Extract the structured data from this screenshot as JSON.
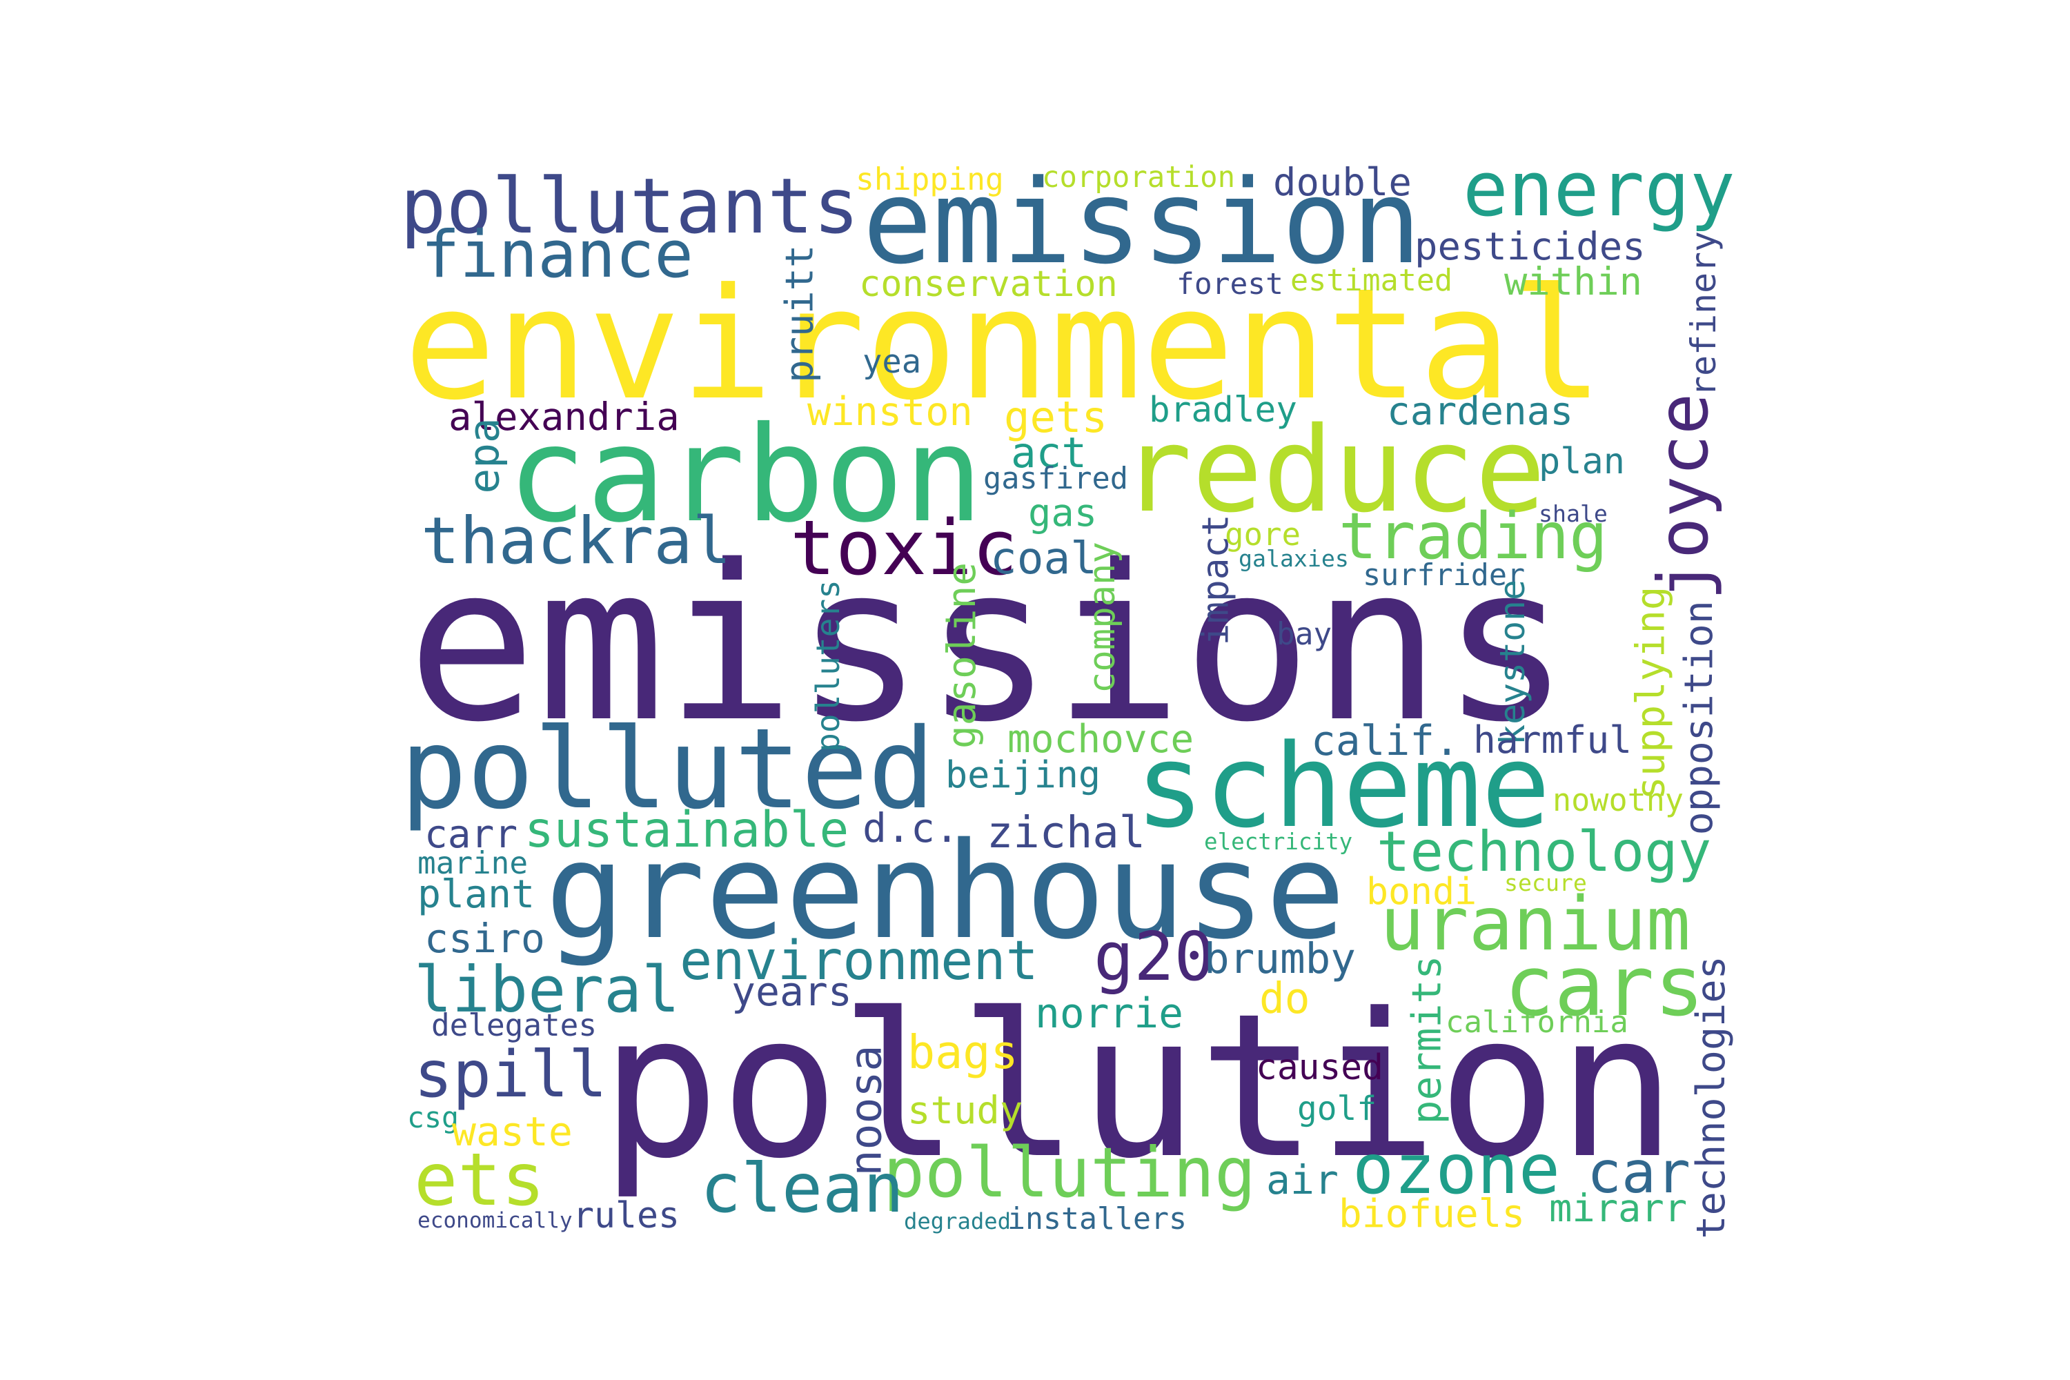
{
  "palette": {
    "dark_purple": "#440154",
    "purple": "#482878",
    "indigo": "#3e4989",
    "slate_blue": "#31688e",
    "teal_blue": "#26828e",
    "teal": "#1f9e89",
    "green": "#35b779",
    "light_green": "#6ece58",
    "lime": "#b5de2b",
    "yellow": "#fde725"
  },
  "words": [
    {
      "text": "emissions",
      "color": "#482878"
    },
    {
      "text": "pollution",
      "color": "#482878"
    },
    {
      "text": "environmental",
      "color": "#fde725"
    },
    {
      "text": "emission",
      "color": "#31688e"
    },
    {
      "text": "greenhouse",
      "color": "#31688e"
    },
    {
      "text": "carbon",
      "color": "#35b779"
    },
    {
      "text": "reduce",
      "color": "#b5de2b"
    },
    {
      "text": "scheme",
      "color": "#1f9e89"
    },
    {
      "text": "polluted",
      "color": "#31688e"
    },
    {
      "text": "pollutants",
      "color": "#3e4989"
    },
    {
      "text": "energy",
      "color": "#1f9e89"
    },
    {
      "text": "finance",
      "color": "#31688e"
    },
    {
      "text": "thackral",
      "color": "#31688e"
    },
    {
      "text": "toxic",
      "color": "#440154"
    },
    {
      "text": "trading",
      "color": "#6ece58"
    },
    {
      "text": "joyce",
      "color": "#482878"
    },
    {
      "text": "uranium",
      "color": "#6ece58"
    },
    {
      "text": "technology",
      "color": "#35b779"
    },
    {
      "text": "environment",
      "color": "#26828e"
    },
    {
      "text": "g20",
      "color": "#482878"
    },
    {
      "text": "cars",
      "color": "#6ece58"
    },
    {
      "text": "liberal",
      "color": "#26828e"
    },
    {
      "text": "spill",
      "color": "#3e4989"
    },
    {
      "text": "ets",
      "color": "#b5de2b"
    },
    {
      "text": "polluting",
      "color": "#6ece58"
    },
    {
      "text": "clean",
      "color": "#26828e"
    },
    {
      "text": "ozone",
      "color": "#1f9e89"
    },
    {
      "text": "car",
      "color": "#31688e"
    },
    {
      "text": "sustainable",
      "color": "#35b779"
    },
    {
      "text": "alexandria",
      "color": "#440154"
    },
    {
      "text": "pesticides",
      "color": "#3e4989"
    },
    {
      "text": "conservation",
      "color": "#b5de2b"
    },
    {
      "text": "within",
      "color": "#6ece58"
    },
    {
      "text": "forest",
      "color": "#3e4989"
    },
    {
      "text": "estimated",
      "color": "#b5de2b"
    },
    {
      "text": "shipping",
      "color": "#fde725"
    },
    {
      "text": "corporation",
      "color": "#b5de2b"
    },
    {
      "text": "double",
      "color": "#3e4989"
    },
    {
      "text": "pruitt",
      "color": "#31688e"
    },
    {
      "text": "refinery",
      "color": "#3e4989"
    },
    {
      "text": "yea",
      "color": "#31688e"
    },
    {
      "text": "winston",
      "color": "#fde725"
    },
    {
      "text": "gets",
      "color": "#fde725"
    },
    {
      "text": "bradley",
      "color": "#1f9e89"
    },
    {
      "text": "cardenas",
      "color": "#26828e"
    },
    {
      "text": "epa",
      "color": "#26828e"
    },
    {
      "text": "act",
      "color": "#1f9e89"
    },
    {
      "text": "gasfired",
      "color": "#31688e"
    },
    {
      "text": "gas",
      "color": "#35b779"
    },
    {
      "text": "plan",
      "color": "#26828e"
    },
    {
      "text": "shale",
      "color": "#3e4989"
    },
    {
      "text": "coal",
      "color": "#31688e"
    },
    {
      "text": "impact",
      "color": "#3e4989"
    },
    {
      "text": "gore",
      "color": "#b5de2b"
    },
    {
      "text": "galaxies",
      "color": "#26828e"
    },
    {
      "text": "surfrider",
      "color": "#31688e"
    },
    {
      "text": "company",
      "color": "#6ece58"
    },
    {
      "text": "gasoline",
      "color": "#6ece58"
    },
    {
      "text": "polluters",
      "color": "#26828e"
    },
    {
      "text": "keystone",
      "color": "#26828e"
    },
    {
      "text": "bay",
      "color": "#3e4989"
    },
    {
      "text": "supplying",
      "color": "#b5de2b"
    },
    {
      "text": "opposition",
      "color": "#3e4989"
    },
    {
      "text": "mochovce",
      "color": "#6ece58"
    },
    {
      "text": "calif.",
      "color": "#31688e"
    },
    {
      "text": "harmful",
      "color": "#3e4989"
    },
    {
      "text": "beijing",
      "color": "#26828e"
    },
    {
      "text": "nowotny",
      "color": "#b5de2b"
    },
    {
      "text": "carr",
      "color": "#3e4989"
    },
    {
      "text": "d.c.",
      "color": "#3e4989"
    },
    {
      "text": "zichal",
      "color": "#3e4989"
    },
    {
      "text": "electricity",
      "color": "#35b779"
    },
    {
      "text": "marine",
      "color": "#26828e"
    },
    {
      "text": "plant",
      "color": "#26828e"
    },
    {
      "text": "bondi",
      "color": "#fde725"
    },
    {
      "text": "secure",
      "color": "#b5de2b"
    },
    {
      "text": "csiro",
      "color": "#31688e"
    },
    {
      "text": "years",
      "color": "#3e4989"
    },
    {
      "text": "brumby",
      "color": "#31688e"
    },
    {
      "text": "do",
      "color": "#fde725"
    },
    {
      "text": "delegates",
      "color": "#3e4989"
    },
    {
      "text": "norrie",
      "color": "#1f9e89"
    },
    {
      "text": "permits",
      "color": "#35b779"
    },
    {
      "text": "california",
      "color": "#6ece58"
    },
    {
      "text": "technologies",
      "color": "#3e4989"
    },
    {
      "text": "bags",
      "color": "#fde725"
    },
    {
      "text": "noosa",
      "color": "#3e4989"
    },
    {
      "text": "caused",
      "color": "#440154"
    },
    {
      "text": "golf",
      "color": "#1f9e89"
    },
    {
      "text": "study",
      "color": "#b5de2b"
    },
    {
      "text": "csg",
      "color": "#1f9e89"
    },
    {
      "text": "waste",
      "color": "#fde725"
    },
    {
      "text": "air",
      "color": "#26828e"
    },
    {
      "text": "rules",
      "color": "#3e4989"
    },
    {
      "text": "economically",
      "color": "#3e4989"
    },
    {
      "text": "degraded",
      "color": "#26828e"
    },
    {
      "text": "installers",
      "color": "#31688e"
    },
    {
      "text": "biofuels",
      "color": "#fde725"
    },
    {
      "text": "mirarr",
      "color": "#35b779"
    }
  ]
}
